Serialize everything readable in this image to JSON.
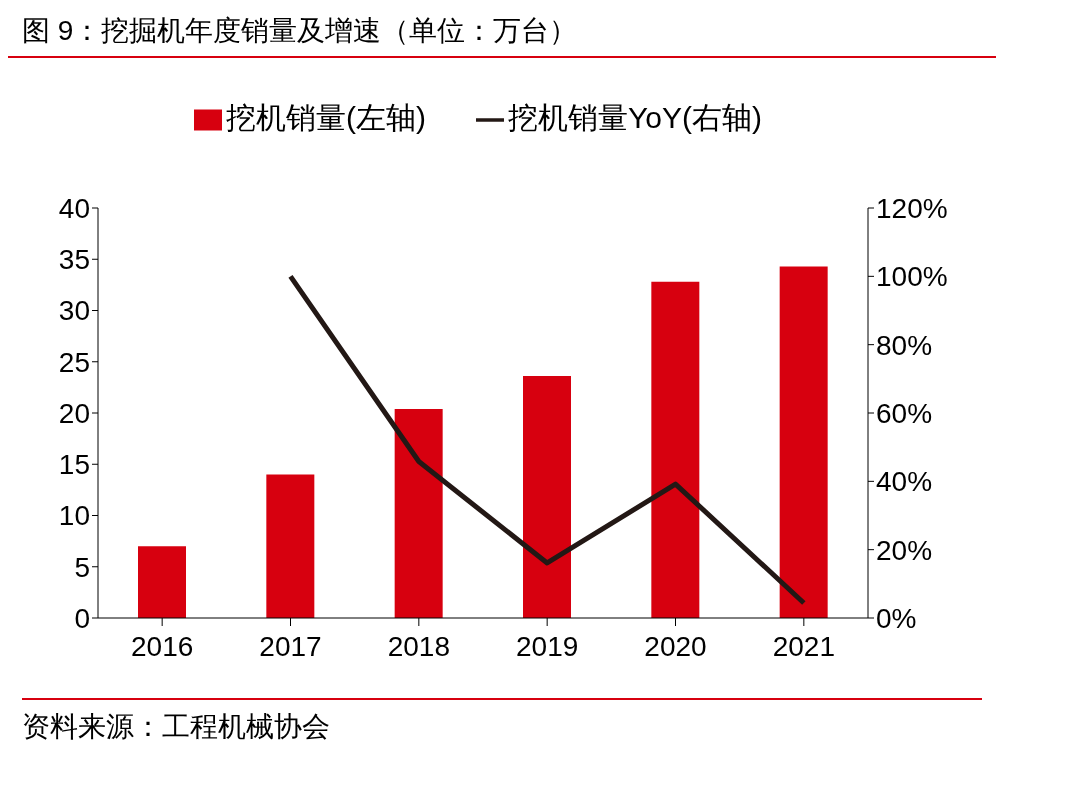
{
  "chart_data": {
    "type": "bar",
    "title": "图 9：挖掘机年度销量及增速（单位：万台）",
    "categories": [
      "2016",
      "2017",
      "2018",
      "2019",
      "2020",
      "2021"
    ],
    "series": [
      {
        "name": "挖机销量(左轴)",
        "color": "#d7000f",
        "values": [
          7.0,
          14.0,
          20.4,
          23.6,
          32.8,
          34.3
        ]
      },
      {
        "name": "挖机销量YoY(右轴)",
        "type": "line",
        "axis": "y2",
        "color": "#231815",
        "values": [
          null,
          100,
          45.8,
          16.1,
          39.2,
          4.4
        ]
      }
    ],
    "ylim": [
      0,
      40
    ],
    "yticks": [
      0,
      5,
      10,
      15,
      20,
      25,
      30,
      35,
      40
    ],
    "y2lim": [
      0,
      120
    ],
    "y2ticks": [
      {
        "value": 0,
        "label": "0%"
      },
      {
        "value": 20,
        "label": "20%"
      },
      {
        "value": 40,
        "label": "40%"
      },
      {
        "value": 60,
        "label": "60%"
      },
      {
        "value": 80,
        "label": "80%"
      },
      {
        "value": 100,
        "label": "100%"
      },
      {
        "value": 120,
        "label": "120%"
      }
    ],
    "legend": "top",
    "marker": "none",
    "annotations": [
      "资料来源：工程机械协会"
    ]
  }
}
